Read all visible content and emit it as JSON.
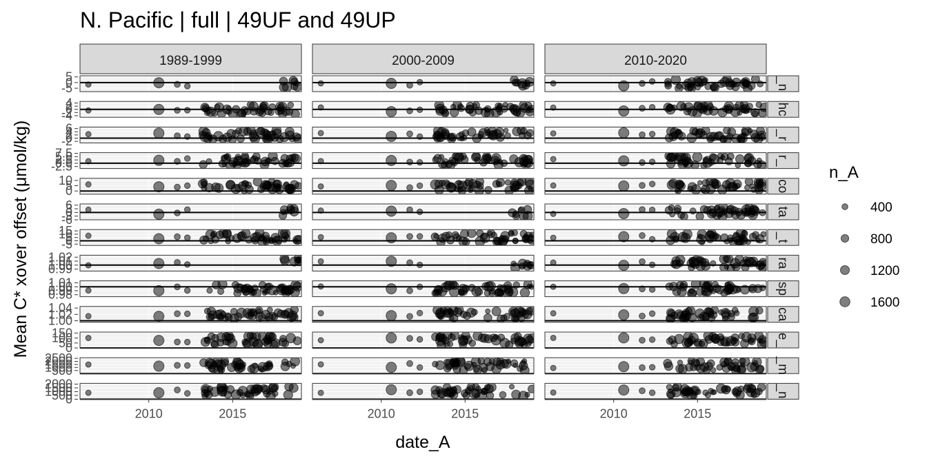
{
  "chart_data": {
    "type": "scatter",
    "title": "N. Pacific | full | 49UF and 49UP",
    "xlabel": "date_A",
    "ylabel": "Mean C* xover offset (μmol/kg)",
    "x_ticks": [
      2010,
      2015
    ],
    "x_range": [
      2005.9,
      2019.1
    ],
    "col_facets": [
      "1989-1999",
      "2000-2009",
      "2010-2020"
    ],
    "row_facets": [
      {
        "strip": "_n",
        "ylim": [
          -8,
          6
        ],
        "ticks": [
          5,
          0,
          -5
        ],
        "tick_labels": [
          "5",
          "0",
          "-5"
        ]
      },
      {
        "strip": "hc",
        "ylim": [
          -5,
          5
        ],
        "ticks": [
          4,
          2,
          0,
          -2,
          -4
        ],
        "tick_labels": [
          "4",
          "2",
          "0",
          "-2",
          "-4"
        ]
      },
      {
        "strip": "_r",
        "ylim": [
          -3,
          7
        ],
        "ticks": [
          6,
          4,
          2,
          0,
          -2
        ],
        "tick_labels": [
          "6",
          "4",
          "2",
          "0",
          "-2"
        ]
      },
      {
        "strip": "r_",
        "ylim": [
          -4,
          8
        ],
        "ticks": [
          7.5,
          5.0,
          2.5,
          0.0,
          -2.5
        ],
        "tick_labels": [
          "7.5",
          "5.0",
          "2.5",
          "0.0",
          "-2.5"
        ]
      },
      {
        "strip": "co",
        "ylim": [
          -3,
          12
        ],
        "ticks": [
          10,
          5,
          0
        ],
        "tick_labels": [
          "10",
          "5",
          "0"
        ]
      },
      {
        "strip": "ta",
        "ylim": [
          -6,
          7
        ],
        "ticks": [
          6,
          3,
          0,
          -3,
          -6
        ],
        "tick_labels": [
          "6",
          "3",
          "0",
          "-3",
          "-6"
        ]
      },
      {
        "strip": "_t",
        "ylim": [
          -7,
          17
        ],
        "ticks": [
          15,
          10,
          5,
          0,
          -5
        ],
        "tick_labels": [
          "15",
          "10",
          "5",
          "0",
          "-5"
        ]
      },
      {
        "strip": "ra",
        "ylim": [
          0.985,
          1.025
        ],
        "ticks": [
          1.02,
          1.01,
          1.0,
          0.99
        ],
        "tick_labels": [
          "1.02",
          "1.01",
          "1.00",
          "0.99"
        ]
      },
      {
        "strip": "sp",
        "ylim": [
          0.975,
          1.015
        ],
        "ticks": [
          1.01,
          1.0,
          0.99,
          0.98
        ],
        "tick_labels": [
          "1.01",
          "1.00",
          "0.99",
          "0.98"
        ]
      },
      {
        "strip": "ca",
        "ylim": [
          0.995,
          1.045
        ],
        "ticks": [
          1.04,
          1.02,
          1.0
        ],
        "tick_labels": [
          "1.04",
          "1.02",
          "1.00"
        ]
      },
      {
        "strip": "e_",
        "ylim": [
          0,
          160
        ],
        "ticks": [
          150,
          100,
          50,
          0
        ],
        "tick_labels": [
          "150",
          "100",
          "50",
          "0"
        ]
      },
      {
        "strip": "_m",
        "ylim": [
          0,
          2600
        ],
        "ticks": [
          2500,
          2000,
          1500,
          1000,
          500
        ],
        "tick_labels": [
          "2500",
          "2000",
          "1500",
          "1000",
          "500"
        ]
      },
      {
        "strip": "_n",
        "ylim": [
          0,
          2100
        ],
        "ticks": [
          2000,
          1500,
          1000,
          500,
          0
        ],
        "tick_labels": [
          "2000",
          "1500",
          "1000",
          "500",
          "0"
        ]
      }
    ],
    "hline_y": [
      0,
      0,
      0,
      0,
      0,
      0,
      0,
      1,
      1,
      1,
      0,
      0,
      0
    ],
    "legend": {
      "title": "n_A",
      "placement": "right",
      "entries": [
        {
          "label": "400",
          "value": 400
        },
        {
          "label": "800",
          "value": 800
        },
        {
          "label": "1200",
          "value": 1200
        },
        {
          "label": "1600",
          "value": 1600
        }
      ]
    },
    "point_color": "#000000",
    "point_alpha": 0.5,
    "panel_fill": "#f2f2f2",
    "strip_fill": "#d9d9d9",
    "series": [
      {
        "name": "",
        "points": [
          [
            2006.5,
            0.75,
            300
          ],
          [
            2010.6,
            0.55,
            1700
          ],
          [
            2012.4,
            0.85,
            300
          ],
          [
            2018.1,
            0.5,
            650
          ],
          [
            2018.4,
            0.45,
            900
          ],
          [
            2018.7,
            0.5,
            800
          ],
          [
            2018.9,
            0.55,
            600
          ],
          [
            2018.2,
            0.25,
            450
          ],
          [
            2018.6,
            0.65,
            1000
          ]
        ]
      }
    ]
  }
}
